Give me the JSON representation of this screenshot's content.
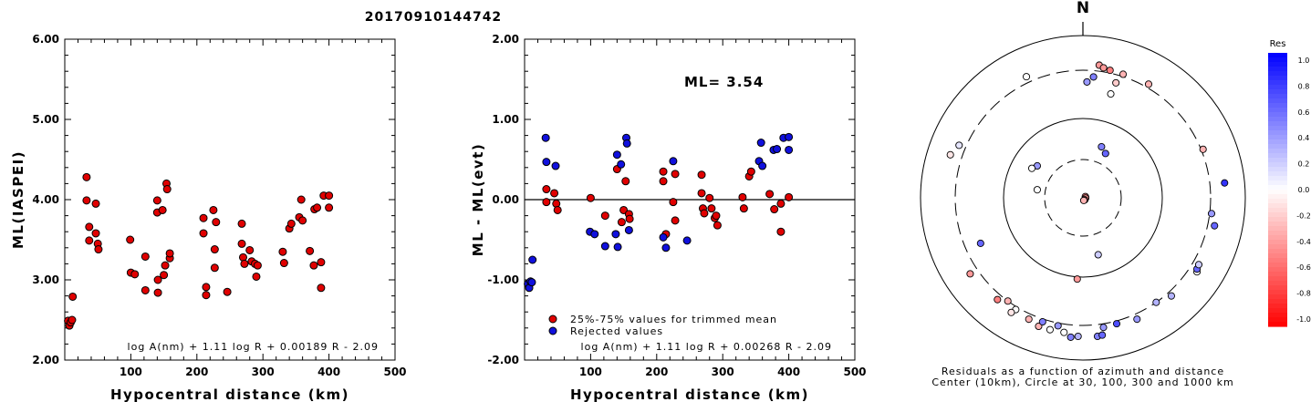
{
  "figure_title": "20170910144742",
  "chart_data": [
    {
      "type": "scatter",
      "panel": "left",
      "xlabel": "Hypocentral distance (km)",
      "ylabel": "ML(IASPEI)",
      "xlim": [
        0,
        500
      ],
      "ylim": [
        2.0,
        6.0
      ],
      "xticks": [
        "100",
        "200",
        "300",
        "400",
        "500"
      ],
      "yticks": [
        "2.00",
        "3.00",
        "4.00",
        "5.00",
        "6.00"
      ],
      "formula": "log A(nm) + 1.11 log R + 0.00189 R - 2.09",
      "series": [
        {
          "color": "#e00000",
          "points": [
            [
              5,
              2.49
            ],
            [
              7,
              2.43
            ],
            [
              9,
              2.47
            ],
            [
              11,
              2.5
            ],
            [
              12,
              2.79
            ],
            [
              33,
              4.28
            ],
            [
              33,
              3.99
            ],
            [
              37,
              3.66
            ],
            [
              37,
              3.49
            ],
            [
              47,
              3.95
            ],
            [
              47,
              3.58
            ],
            [
              50,
              3.45
            ],
            [
              51,
              3.38
            ],
            [
              99,
              3.5
            ],
            [
              100,
              3.09
            ],
            [
              106,
              3.07
            ],
            [
              122,
              2.87
            ],
            [
              122,
              3.29
            ],
            [
              140,
              3.99
            ],
            [
              140,
              3.84
            ],
            [
              141,
              2.84
            ],
            [
              141,
              3.0
            ],
            [
              148,
              3.87
            ],
            [
              150,
              3.06
            ],
            [
              152,
              3.18
            ],
            [
              154,
              4.2
            ],
            [
              155,
              4.13
            ],
            [
              159,
              3.27
            ],
            [
              159,
              3.33
            ],
            [
              210,
              3.77
            ],
            [
              210,
              3.58
            ],
            [
              214,
              2.81
            ],
            [
              214,
              2.91
            ],
            [
              225,
              3.87
            ],
            [
              227,
              3.15
            ],
            [
              227,
              3.38
            ],
            [
              229,
              3.72
            ],
            [
              246,
              2.85
            ],
            [
              268,
              3.7
            ],
            [
              268,
              3.45
            ],
            [
              270,
              3.28
            ],
            [
              272,
              3.2
            ],
            [
              280,
              3.37
            ],
            [
              283,
              3.23
            ],
            [
              288,
              3.2
            ],
            [
              290,
              3.04
            ],
            [
              292,
              3.18
            ],
            [
              330,
              3.35
            ],
            [
              332,
              3.21
            ],
            [
              340,
              3.64
            ],
            [
              343,
              3.7
            ],
            [
              355,
              3.78
            ],
            [
              358,
              4.0
            ],
            [
              360,
              3.74
            ],
            [
              371,
              3.36
            ],
            [
              377,
              3.18
            ],
            [
              378,
              3.88
            ],
            [
              382,
              3.9
            ],
            [
              388,
              3.22
            ],
            [
              388,
              2.9
            ],
            [
              392,
              4.05
            ],
            [
              400,
              3.9
            ],
            [
              400,
              4.05
            ]
          ]
        }
      ]
    },
    {
      "type": "scatter",
      "panel": "middle",
      "xlabel": "Hypocentral distance (km)",
      "ylabel": "ML - ML(evt)",
      "xlim": [
        0,
        500
      ],
      "ylim": [
        -2.0,
        2.0
      ],
      "xticks": [
        "100",
        "200",
        "300",
        "400",
        "500"
      ],
      "yticks": [
        "-2.00",
        "-1.00",
        "0.00",
        "1.00",
        "2.00"
      ],
      "annotation": "ML=  3.54",
      "formula": "log A(nm) + 1.11 log R + 0.00268 R - 2.09",
      "legend": [
        "25%-75% values for trimmed mean",
        "Rejected values"
      ],
      "series": [
        {
          "name": "25%-75% values for trimmed mean",
          "color": "#e00000",
          "points": [
            [
              33,
              -0.03
            ],
            [
              33,
              0.13
            ],
            [
              45,
              0.08
            ],
            [
              48,
              -0.05
            ],
            [
              50,
              -0.13
            ],
            [
              100,
              0.02
            ],
            [
              122,
              -0.2
            ],
            [
              140,
              0.38
            ],
            [
              147,
              -0.28
            ],
            [
              150,
              -0.13
            ],
            [
              153,
              0.23
            ],
            [
              158,
              -0.18
            ],
            [
              159,
              -0.24
            ],
            [
              210,
              0.35
            ],
            [
              210,
              0.23
            ],
            [
              214,
              -0.43
            ],
            [
              225,
              -0.03
            ],
            [
              228,
              0.32
            ],
            [
              228,
              -0.26
            ],
            [
              268,
              0.31
            ],
            [
              268,
              0.08
            ],
            [
              270,
              -0.11
            ],
            [
              272,
              -0.17
            ],
            [
              280,
              0.02
            ],
            [
              283,
              -0.11
            ],
            [
              288,
              -0.23
            ],
            [
              290,
              -0.2
            ],
            [
              292,
              -0.32
            ],
            [
              330,
              0.03
            ],
            [
              332,
              -0.11
            ],
            [
              340,
              0.29
            ],
            [
              343,
              0.35
            ],
            [
              371,
              0.07
            ],
            [
              378,
              -0.12
            ],
            [
              388,
              -0.05
            ],
            [
              388,
              -0.4
            ],
            [
              400,
              0.03
            ]
          ]
        },
        {
          "name": "Rejected values",
          "color": "#1010dd",
          "points": [
            [
              5,
              -1.05
            ],
            [
              7,
              -1.1
            ],
            [
              9,
              -1.02
            ],
            [
              11,
              -1.03
            ],
            [
              12,
              -0.75
            ],
            [
              32,
              0.77
            ],
            [
              33,
              0.47
            ],
            [
              47,
              0.42
            ],
            [
              99,
              -0.4
            ],
            [
              106,
              -0.43
            ],
            [
              122,
              -0.58
            ],
            [
              138,
              -0.43
            ],
            [
              140,
              0.56
            ],
            [
              141,
              -0.59
            ],
            [
              146,
              0.44
            ],
            [
              154,
              0.77
            ],
            [
              155,
              0.7
            ],
            [
              158,
              -0.38
            ],
            [
              210,
              -0.47
            ],
            [
              214,
              -0.6
            ],
            [
              225,
              0.48
            ],
            [
              246,
              -0.51
            ],
            [
              355,
              0.48
            ],
            [
              358,
              0.71
            ],
            [
              360,
              0.42
            ],
            [
              377,
              0.62
            ],
            [
              382,
              0.63
            ],
            [
              392,
              0.77
            ],
            [
              400,
              0.62
            ],
            [
              400,
              0.78
            ]
          ]
        }
      ]
    },
    {
      "type": "polar_scatter",
      "panel": "right",
      "north_label": "N",
      "caption_line1": "Residuals as a function of azimuth and distance",
      "caption_line2": "Center (10km), Circle at 30, 100, 300 and 1000 km",
      "colorbar": {
        "title": "Res",
        "range": [
          -1.0,
          1.0
        ],
        "ticks": [
          "1.0",
          "0.8",
          "0.6",
          "0.4",
          "0.2",
          "0.0",
          "-0.2",
          "-0.4",
          "-0.6",
          "-0.8",
          "-1.0"
        ]
      },
      "points": [
        {
          "az": 83,
          "dist": 8,
          "res": -0.6
        },
        {
          "az": 63,
          "dist": 9,
          "res": -0.5
        },
        {
          "az": 96,
          "dist": 9,
          "res": -0.4
        },
        {
          "az": 138,
          "dist": 10,
          "res": -0.5
        },
        {
          "az": 162,
          "dist": 10,
          "res": -0.3
        },
        {
          "az": 7,
          "dist": 370,
          "res": -0.4
        },
        {
          "az": 9,
          "dist": 345,
          "res": -0.4
        },
        {
          "az": 12,
          "dist": 330,
          "res": -0.5
        },
        {
          "az": 18,
          "dist": 325,
          "res": -0.3
        },
        {
          "az": 16,
          "dist": 250,
          "res": -0.2
        },
        {
          "az": 15,
          "dist": 190,
          "res": 0.0
        },
        {
          "az": 5,
          "dist": 260,
          "res": 0.5
        },
        {
          "az": 2,
          "dist": 230,
          "res": 0.4
        },
        {
          "az": 30,
          "dist": 340,
          "res": -0.3
        },
        {
          "az": -25,
          "dist": 370,
          "res": 0.0
        },
        {
          "az": 20,
          "dist": 48,
          "res": 0.5
        },
        {
          "az": 27,
          "dist": 42,
          "res": 0.6
        },
        {
          "az": -55,
          "dist": 50,
          "res": 0.4
        },
        {
          "az": -60,
          "dist": 55,
          "res": 0.0
        },
        {
          "az": -80,
          "dist": 38,
          "res": 0.0
        },
        {
          "az": 165,
          "dist": 55,
          "res": 0.2
        },
        {
          "az": -72,
          "dist": 450,
          "res": -0.1
        },
        {
          "az": -67,
          "dist": 380,
          "res": 0.1
        },
        {
          "az": 68,
          "dist": 320,
          "res": -0.3
        },
        {
          "az": 84,
          "dist": 500,
          "res": 0.8
        },
        {
          "az": 97,
          "dist": 320,
          "res": 0.4
        },
        {
          "az": 102,
          "dist": 380,
          "res": 0.6
        },
        {
          "az": -114,
          "dist": 210,
          "res": 0.6
        },
        {
          "az": -124,
          "dist": 400,
          "res": -0.4
        },
        {
          "az": -140,
          "dist": 360,
          "res": -0.5
        },
        {
          "az": -144,
          "dist": 300,
          "res": -0.3
        },
        {
          "az": -149,
          "dist": 330,
          "res": 0.0
        },
        {
          "az": -148,
          "dist": 390,
          "res": -0.1
        },
        {
          "az": -156,
          "dist": 360,
          "res": -0.3
        },
        {
          "az": -161,
          "dist": 400,
          "res": -0.3
        },
        {
          "az": -166,
          "dist": 400,
          "res": 0.0
        },
        {
          "az": -172,
          "dist": 400,
          "res": 0.0
        },
        {
          "az": -178,
          "dist": 440,
          "res": 0.3
        },
        {
          "az": -175,
          "dist": 460,
          "res": 0.5
        },
        {
          "az": -169,
          "dist": 330,
          "res": 0.4
        },
        {
          "az": -162,
          "dist": 330,
          "res": 0.5
        },
        {
          "az": -176,
          "dist": 105,
          "res": -0.4
        },
        {
          "az": 171,
          "dist": 340,
          "res": 0.4
        },
        {
          "az": 165,
          "dist": 330,
          "res": 0.7
        },
        {
          "az": 174,
          "dist": 450,
          "res": 0.5
        },
        {
          "az": 172,
          "dist": 440,
          "res": 0.6
        },
        {
          "az": 156,
          "dist": 360,
          "res": 0.4
        },
        {
          "az": 145,
          "dist": 300,
          "res": 0.3
        },
        {
          "az": 138,
          "dist": 350,
          "res": 0.3
        },
        {
          "az": 123,
          "dist": 400,
          "res": 0.0
        },
        {
          "az": 122,
          "dist": 380,
          "res": 0.6
        },
        {
          "az": 120,
          "dist": 370,
          "res": 0.2
        }
      ]
    }
  ]
}
